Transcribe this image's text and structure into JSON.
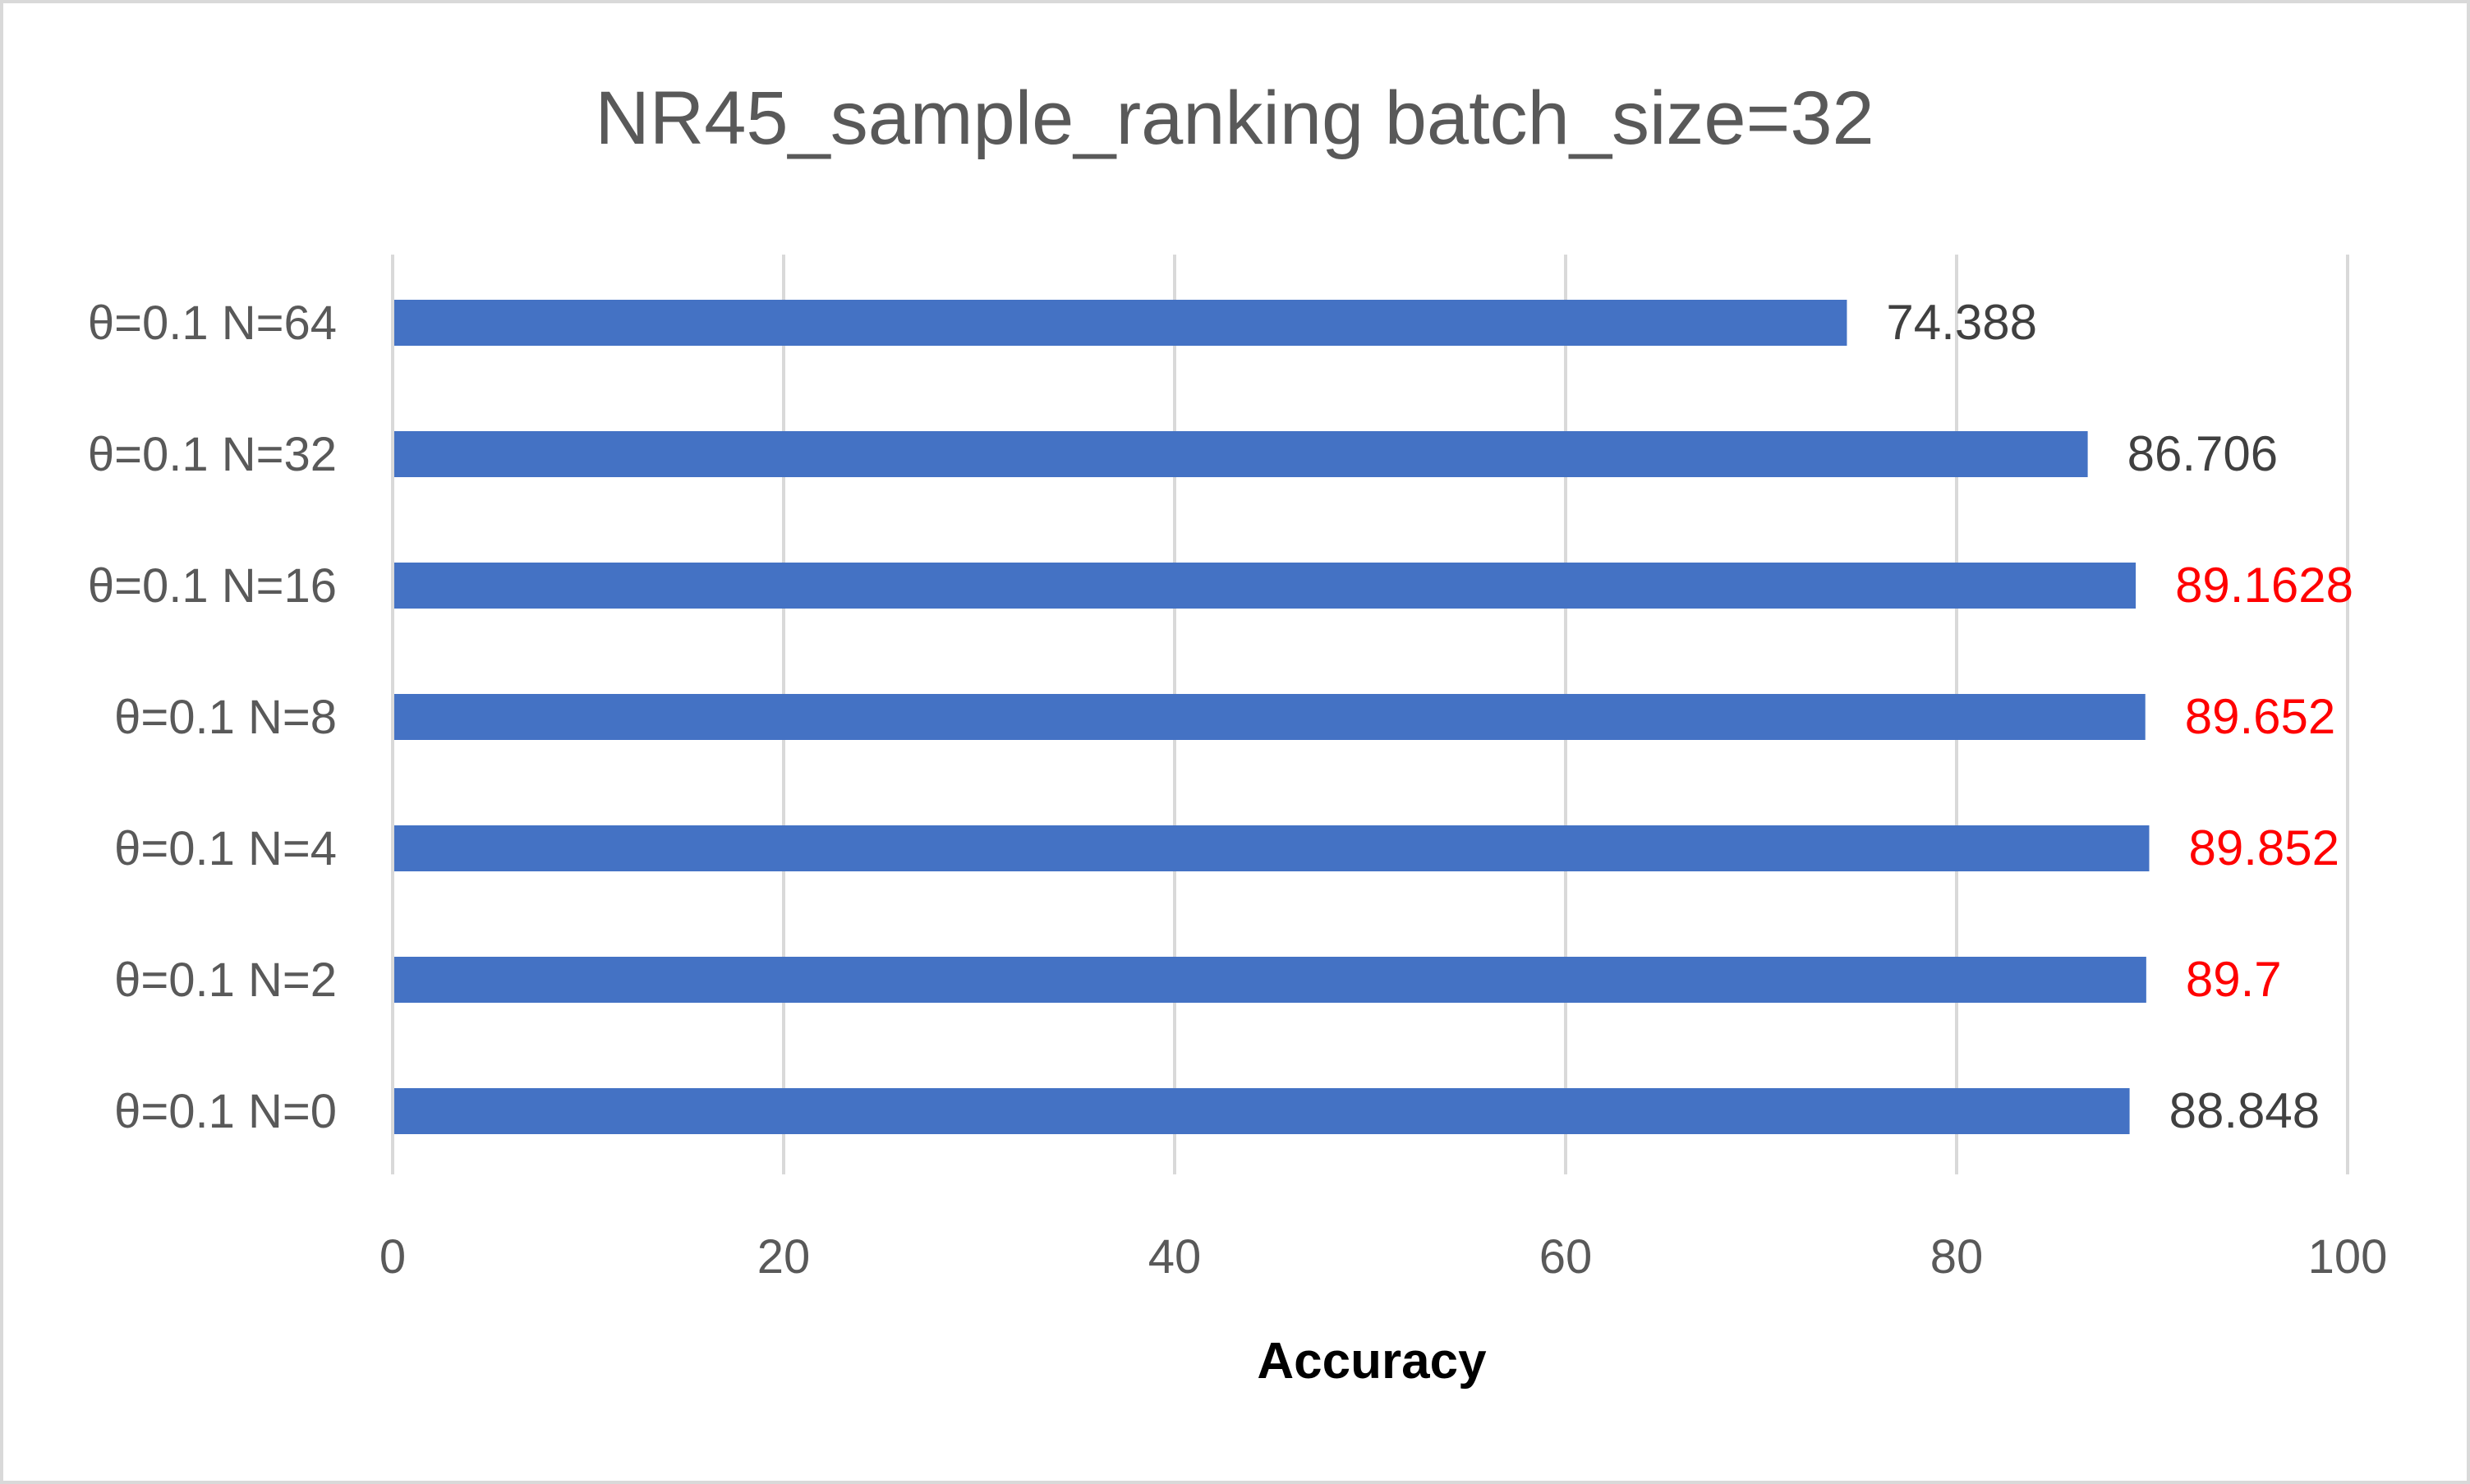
{
  "chart_data": {
    "type": "bar",
    "orientation": "horizontal",
    "title": "NR45_sample_ranking batch_size=32",
    "xlabel": "Accuracy",
    "ylabel": "",
    "xlim": [
      0,
      100
    ],
    "x_ticks": [
      "0",
      "20",
      "40",
      "60",
      "80",
      "100"
    ],
    "grid": true,
    "legend": "none",
    "categories": [
      "θ=0.1 N=64",
      "θ=0.1 N=32",
      "θ=0.1 N=16",
      "θ=0.1 N=8",
      "θ=0.1 N=4",
      "θ=0.1 N=2",
      "θ=0.1 N=0"
    ],
    "values": [
      74.388,
      86.706,
      89.1628,
      89.652,
      89.852,
      89.7,
      88.848
    ],
    "data_labels": [
      "74.388",
      "86.706",
      "89.1628",
      "89.652",
      "89.852",
      "89.7",
      "88.848"
    ],
    "label_colors": [
      "#404040",
      "#404040",
      "#ff0000",
      "#ff0000",
      "#ff0000",
      "#ff0000",
      "#404040"
    ],
    "bar_color": "#4472c4"
  }
}
